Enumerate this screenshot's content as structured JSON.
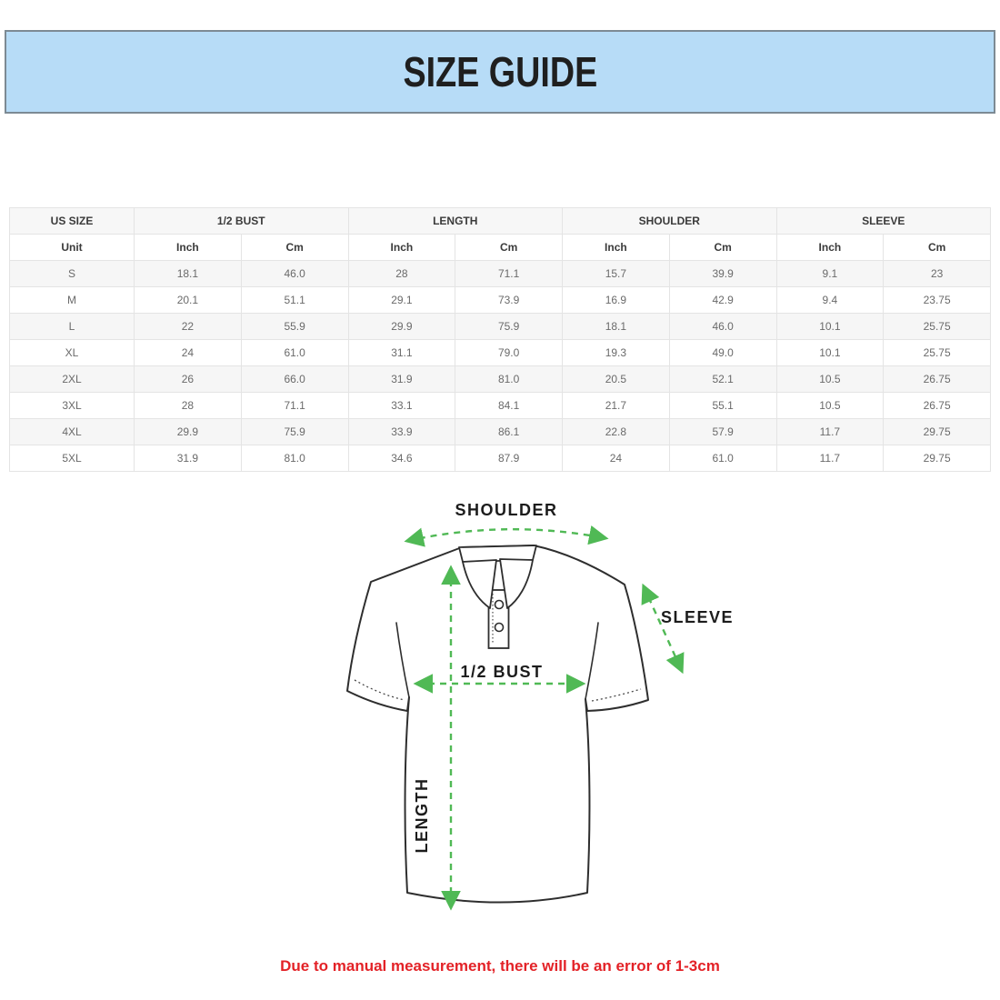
{
  "banner": {
    "title": "SIZE GUIDE"
  },
  "size_table": {
    "groups": [
      {
        "label": "US SIZE",
        "span": 1
      },
      {
        "label": "1/2 BUST",
        "span": 2
      },
      {
        "label": "LENGTH",
        "span": 2
      },
      {
        "label": "SHOULDER",
        "span": 2
      },
      {
        "label": "SLEEVE",
        "span": 2
      }
    ],
    "unit_header": [
      "Unit",
      "Inch",
      "Cm",
      "Inch",
      "Cm",
      "Inch",
      "Cm",
      "Inch",
      "Cm"
    ],
    "rows": [
      [
        "S",
        "18.1",
        "46.0",
        "28",
        "71.1",
        "15.7",
        "39.9",
        "9.1",
        "23"
      ],
      [
        "M",
        "20.1",
        "51.1",
        "29.1",
        "73.9",
        "16.9",
        "42.9",
        "9.4",
        "23.75"
      ],
      [
        "L",
        "22",
        "55.9",
        "29.9",
        "75.9",
        "18.1",
        "46.0",
        "10.1",
        "25.75"
      ],
      [
        "XL",
        "24",
        "61.0",
        "31.1",
        "79.0",
        "19.3",
        "49.0",
        "10.1",
        "25.75"
      ],
      [
        "2XL",
        "26",
        "66.0",
        "31.9",
        "81.0",
        "20.5",
        "52.1",
        "10.5",
        "26.75"
      ],
      [
        "3XL",
        "28",
        "71.1",
        "33.1",
        "84.1",
        "21.7",
        "55.1",
        "10.5",
        "26.75"
      ],
      [
        "4XL",
        "29.9",
        "75.9",
        "33.9",
        "86.1",
        "22.8",
        "57.9",
        "11.7",
        "29.75"
      ],
      [
        "5XL",
        "31.9",
        "81.0",
        "34.6",
        "87.9",
        "24",
        "61.0",
        "11.7",
        "29.75"
      ]
    ]
  },
  "diagram": {
    "shoulder_label": "SHOULDER",
    "sleeve_label": "SLEEVE",
    "bust_label": "1/2 BUST",
    "length_label": "LENGTH",
    "arrow_color": "#50b955"
  },
  "footer": {
    "disclaimer": "Due to manual measurement, there will be an error of 1-3cm"
  },
  "colors": {
    "banner_bg": "#b7dcf7",
    "banner_border": "#7d8a94",
    "disclaimer_red": "#e32227",
    "arrow_green": "#50b955",
    "row_stripe": "#f6f6f6"
  }
}
